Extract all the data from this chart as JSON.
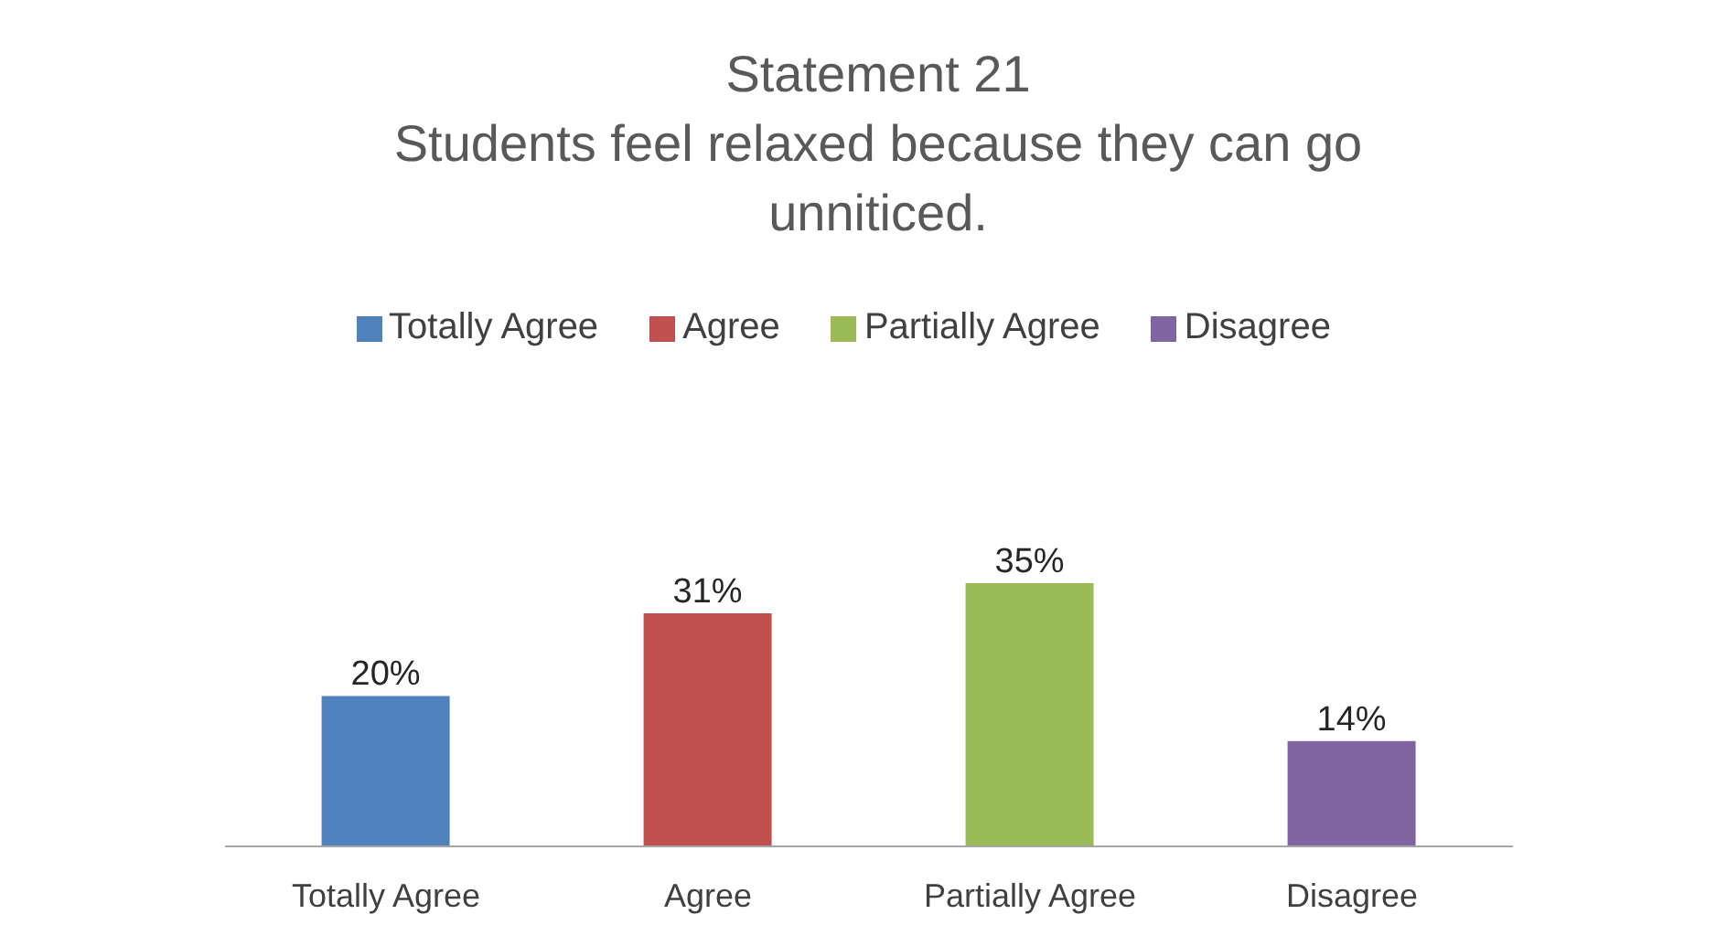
{
  "chart_data": {
    "type": "bar",
    "title": "Statement 21",
    "subtitle": "Students feel relaxed because they can go unniticed.",
    "categories": [
      "Totally Agree",
      "Agree",
      "Partially Agree",
      "Disagree"
    ],
    "stacked": true,
    "series": [
      {
        "name": "Totally Agree",
        "color": "#4f81bd",
        "values": [
          20,
          null,
          null,
          null
        ],
        "value_labels": [
          "20%",
          null,
          null,
          null
        ]
      },
      {
        "name": "Agree",
        "color": "#c0504d",
        "values": [
          null,
          31,
          null,
          null
        ],
        "value_labels": [
          null,
          "31%",
          null,
          null
        ]
      },
      {
        "name": "Partially Agree",
        "color": "#9bbb59",
        "values": [
          null,
          null,
          35,
          null
        ],
        "value_labels": [
          null,
          null,
          "35%",
          null
        ]
      },
      {
        "name": "Disagree",
        "color": "#8064a2",
        "values": [
          null,
          null,
          null,
          14
        ],
        "value_labels": [
          null,
          null,
          null,
          "14%"
        ]
      }
    ],
    "legend": "top"
  }
}
